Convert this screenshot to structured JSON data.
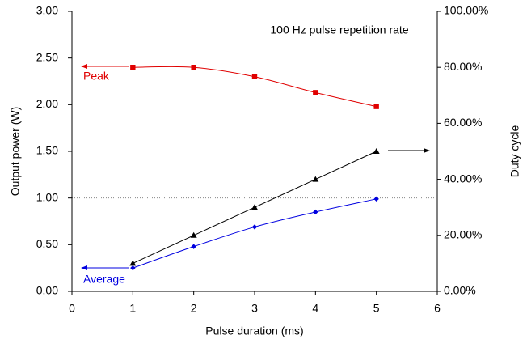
{
  "chart_data": {
    "type": "line",
    "x_label": "Pulse duration (ms)",
    "y_label": "Output power (W)",
    "y2_label": "Duty cycle",
    "x": [
      1,
      2,
      3,
      4,
      5
    ],
    "series": [
      {
        "name": "Peak",
        "color": "#e00000",
        "values": [
          2.4,
          2.4,
          2.3,
          2.13,
          1.98
        ],
        "marker": "square",
        "smooth": true
      },
      {
        "name": "Average",
        "color": "#0000e0",
        "values": [
          0.25,
          0.48,
          0.69,
          0.85,
          0.99
        ],
        "marker": "diamond",
        "smooth": true
      },
      {
        "name": "Duty cycle",
        "color": "#000000",
        "values": [
          10,
          20,
          30,
          40,
          50
        ],
        "marker": "triangle",
        "smooth": false,
        "axis": "y2"
      }
    ],
    "xlim": [
      0,
      6
    ],
    "xticks": [
      0,
      1,
      2,
      3,
      4,
      5,
      6
    ],
    "ylim": [
      0,
      3
    ],
    "yticks": [
      {
        "value": 0,
        "label": "0.00"
      },
      {
        "value": 0.5,
        "label": "0.50"
      },
      {
        "value": 1,
        "label": "1.00"
      },
      {
        "value": 1.5,
        "label": "1.50"
      },
      {
        "value": 2,
        "label": "2.00"
      },
      {
        "value": 2.5,
        "label": "2.50"
      },
      {
        "value": 3,
        "label": "3.00"
      }
    ],
    "y2lim": [
      0,
      100
    ],
    "y2ticks": [
      {
        "value": 0,
        "label": "0.00%"
      },
      {
        "value": 20,
        "label": "20.00%"
      },
      {
        "value": 40,
        "label": "40.00%"
      },
      {
        "value": 60,
        "label": "60.00%"
      },
      {
        "value": 80,
        "label": "80.00%"
      },
      {
        "value": 100,
        "label": "100.00%"
      }
    ],
    "reference_line": {
      "y": 1,
      "color": "#888888"
    },
    "annotations": [
      {
        "text": "100 Hz pulse repetition rate"
      },
      {
        "text": "Peak"
      },
      {
        "text": "Average"
      }
    ]
  }
}
